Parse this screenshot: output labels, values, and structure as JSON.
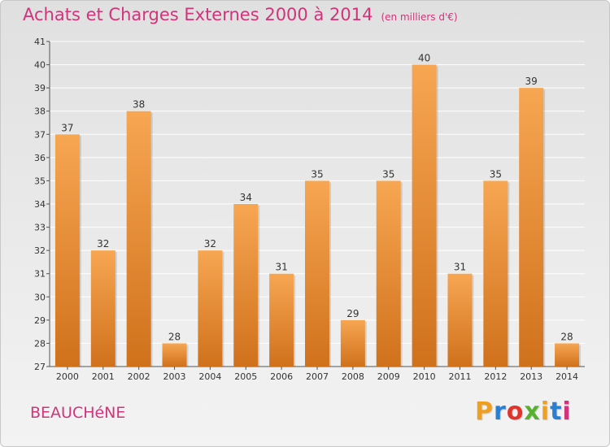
{
  "title": "Achats et Charges Externes 2000 à 2014",
  "subtitle": "(en milliers d'€)",
  "commune": "BEAUCHéNE",
  "brand": {
    "letters": [
      "P",
      "r",
      "o",
      "x",
      "i",
      "t",
      "i"
    ],
    "colors": [
      "#f0a020",
      "#2a7fd0",
      "#e0342c",
      "#58b030",
      "#f0a020",
      "#2a7fd0",
      "#d0347a"
    ]
  },
  "colors": {
    "title": "#d0347a",
    "bar_top": "#f7a652",
    "bar_bottom": "#d0711c",
    "grid": "#ffffff"
  },
  "chart_data": {
    "type": "bar",
    "categories": [
      "2000",
      "2001",
      "2002",
      "2003",
      "2004",
      "2005",
      "2006",
      "2007",
      "2008",
      "2009",
      "2010",
      "2011",
      "2012",
      "2013",
      "2014"
    ],
    "values": [
      37,
      32,
      38,
      28,
      32,
      34,
      31,
      35,
      29,
      35,
      40,
      31,
      35,
      39,
      28
    ],
    "yticks": [
      27,
      28,
      29,
      30,
      31,
      32,
      33,
      34,
      35,
      36,
      37,
      38,
      39,
      40,
      41
    ],
    "ylim": [
      27,
      41
    ],
    "grid": true,
    "data_labels": true
  }
}
